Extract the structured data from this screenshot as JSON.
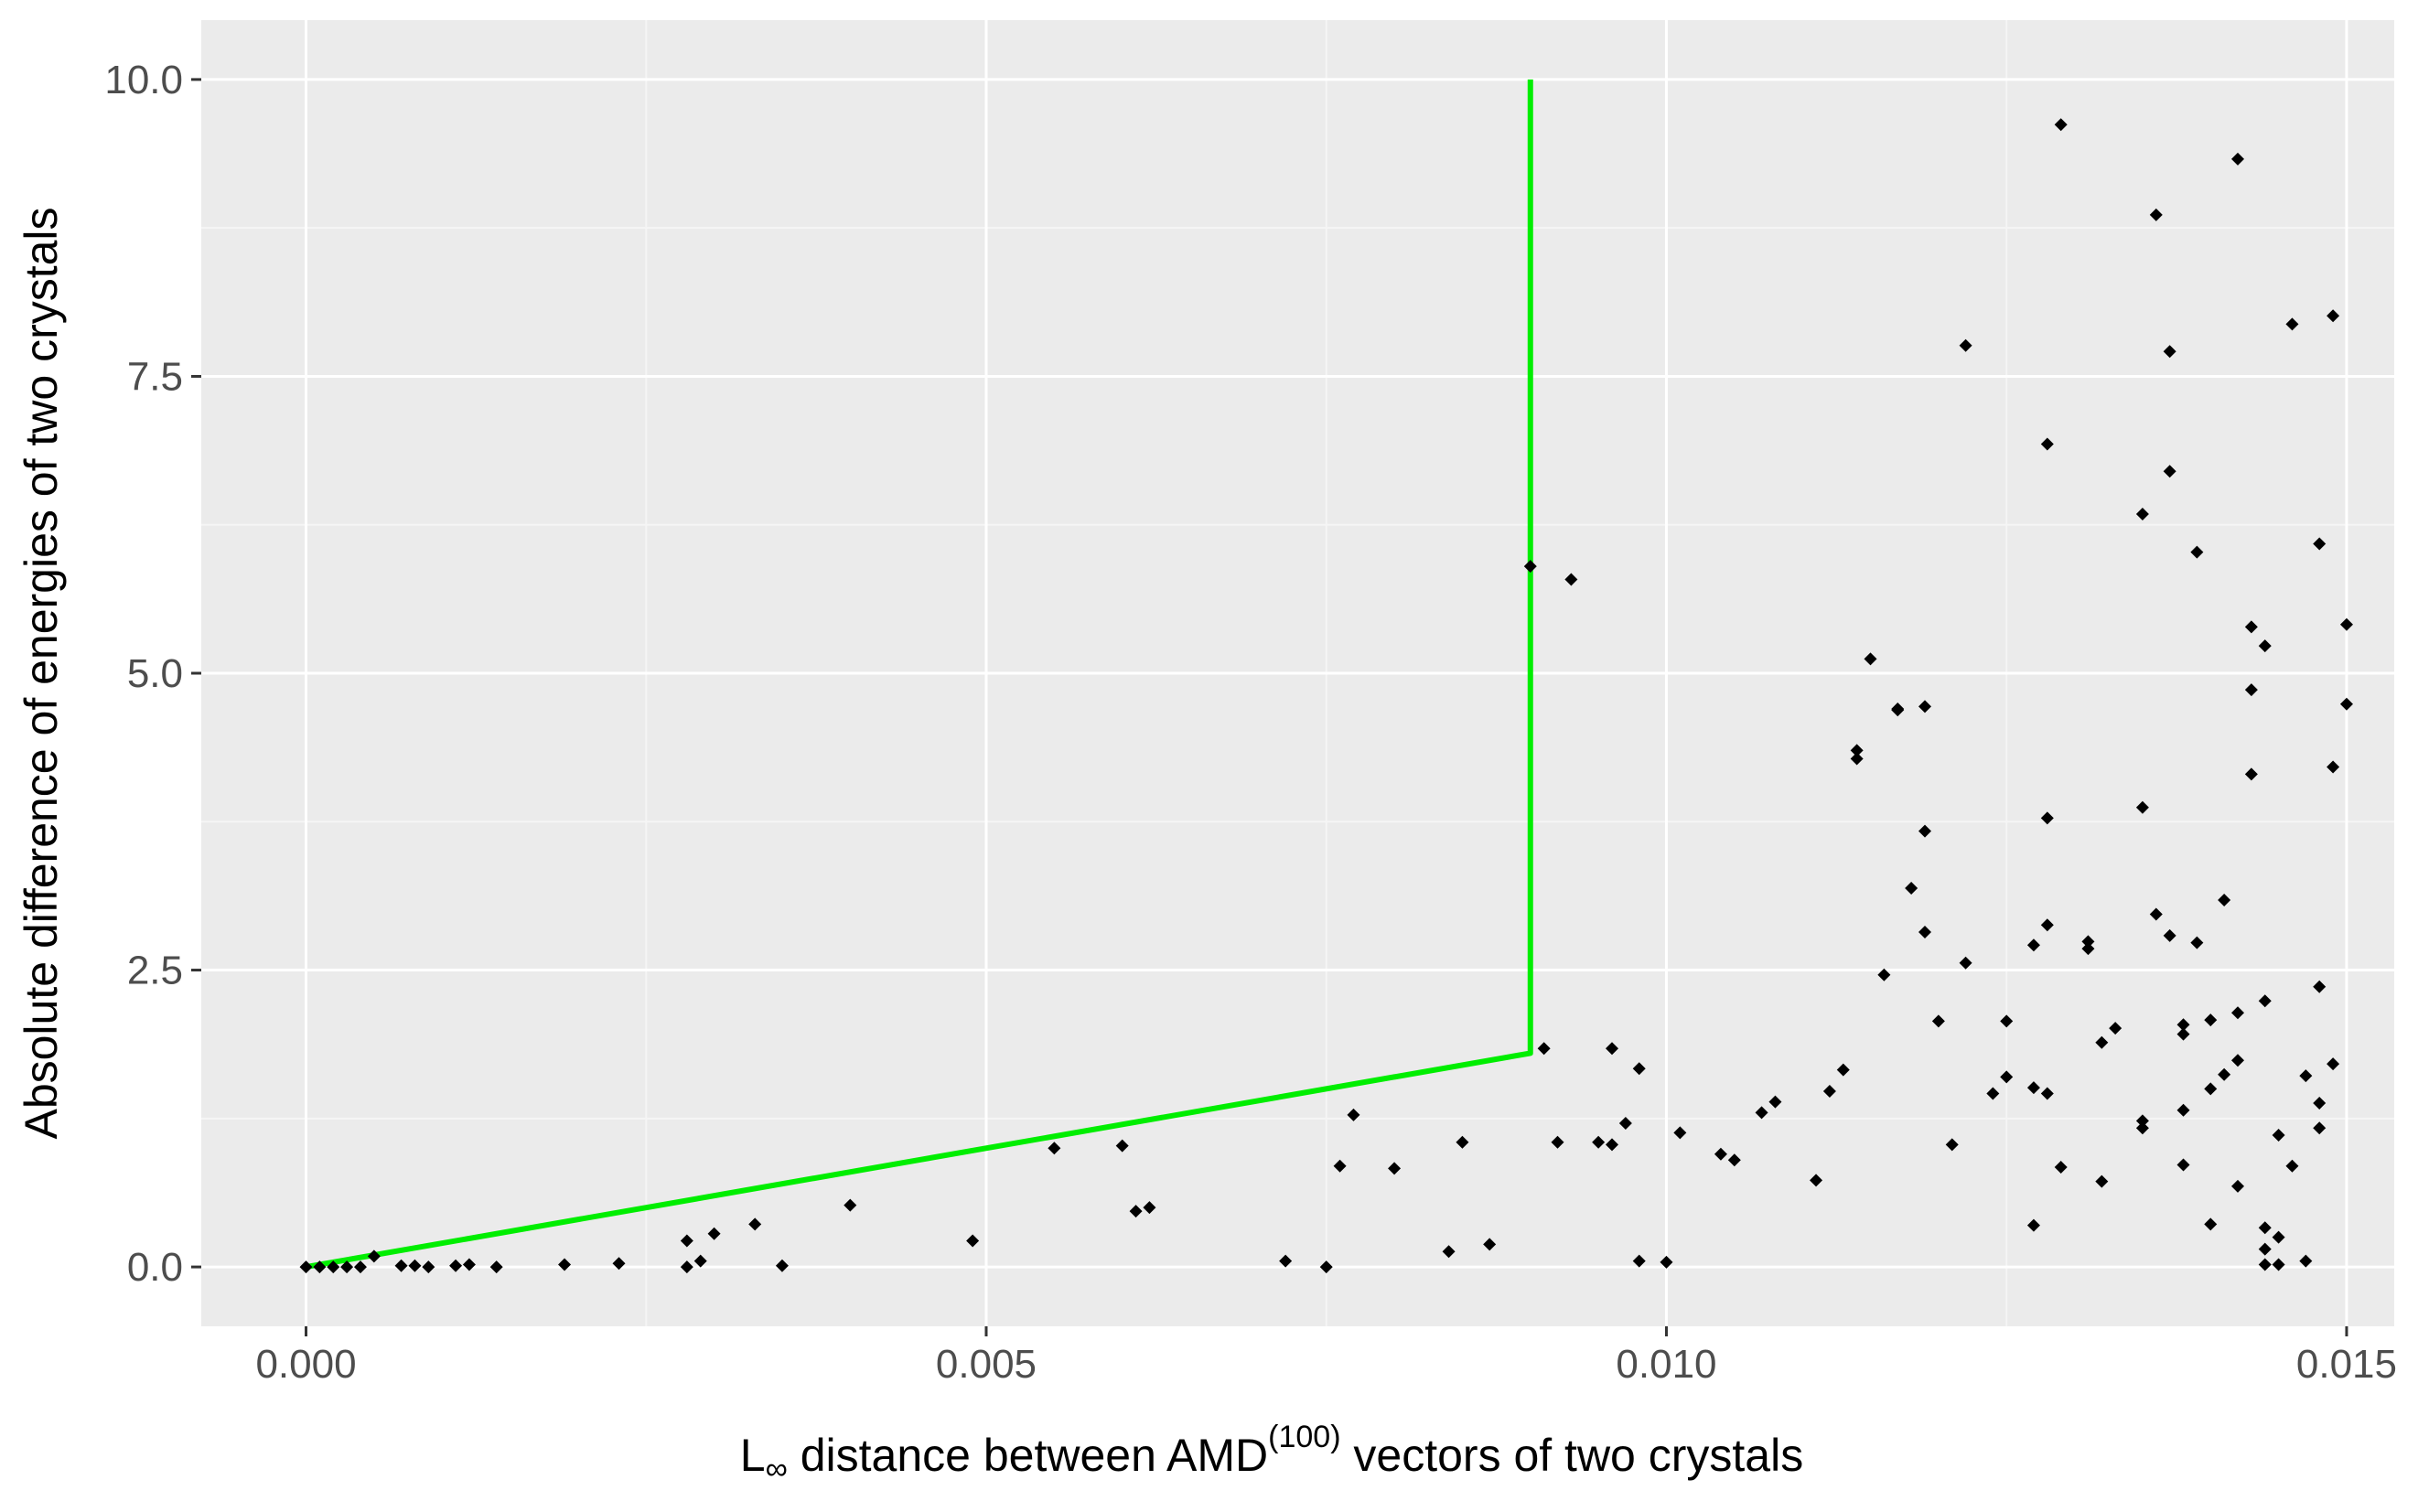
{
  "chart_data": {
    "type": "scatter",
    "title": "",
    "xlabel": {
      "prefix": "L",
      "subscript": "∞",
      "middle": " distance between AMD",
      "superscript": "(100)",
      "suffix": " vectors of two crystals"
    },
    "ylabel": "Absolute difference of energies of two crystals",
    "xlim": [
      -0.00077,
      0.01535
    ],
    "ylim": [
      -0.5,
      10.5
    ],
    "xticks": [
      0.0,
      0.005,
      0.01,
      0.015
    ],
    "xtick_labels": [
      "0.000",
      "0.005",
      "0.010",
      "0.015"
    ],
    "yticks": [
      0.0,
      2.5,
      5.0,
      7.5,
      10.0
    ],
    "ytick_labels": [
      "0.0",
      "2.5",
      "5.0",
      "7.5",
      "10.0"
    ],
    "grid": true,
    "colors": {
      "panel_bg": "#ebebeb",
      "grid_major": "#ffffff",
      "grid_minor": "#f5f5f5",
      "points": "#000000",
      "boundary_line": "#00ee00"
    },
    "boundary_line": {
      "x": [
        0.0,
        0.009,
        0.009
      ],
      "y": [
        0.0,
        1.8,
        10.0
      ]
    },
    "points": [
      [
        0.0,
        0.0
      ],
      [
        0.0001,
        0.0
      ],
      [
        0.0002,
        0.0
      ],
      [
        0.0003,
        0.0
      ],
      [
        0.0004,
        0.0
      ],
      [
        0.0005,
        0.09
      ],
      [
        0.0007,
        0.01
      ],
      [
        0.0008,
        0.01
      ],
      [
        0.0009,
        0.0
      ],
      [
        0.0011,
        0.01
      ],
      [
        0.0012,
        0.02
      ],
      [
        0.0014,
        0.0
      ],
      [
        0.0019,
        0.02
      ],
      [
        0.0023,
        0.03
      ],
      [
        0.0028,
        0.0
      ],
      [
        0.0028,
        0.22
      ],
      [
        0.0029,
        0.05
      ],
      [
        0.003,
        0.28
      ],
      [
        0.0033,
        0.36
      ],
      [
        0.0035,
        0.01
      ],
      [
        0.004,
        0.52
      ],
      [
        0.0049,
        0.22
      ],
      [
        0.0055,
        1.0
      ],
      [
        0.006,
        1.02
      ],
      [
        0.0061,
        0.47
      ],
      [
        0.0062,
        0.5
      ],
      [
        0.0072,
        0.05
      ],
      [
        0.0075,
        0.0
      ],
      [
        0.0076,
        0.85
      ],
      [
        0.0077,
        1.28
      ],
      [
        0.008,
        0.83
      ],
      [
        0.0084,
        0.13
      ],
      [
        0.0085,
        1.05
      ],
      [
        0.0087,
        0.19
      ],
      [
        0.009,
        5.9
      ],
      [
        0.0091,
        1.84
      ],
      [
        0.0092,
        1.05
      ],
      [
        0.0093,
        5.79
      ],
      [
        0.0095,
        1.05
      ],
      [
        0.0096,
        1.03
      ],
      [
        0.0096,
        1.84
      ],
      [
        0.0097,
        1.21
      ],
      [
        0.0098,
        1.67
      ],
      [
        0.0098,
        0.05
      ],
      [
        0.01,
        0.04
      ],
      [
        0.0101,
        1.13
      ],
      [
        0.0104,
        0.95
      ],
      [
        0.0105,
        0.9
      ],
      [
        0.0107,
        1.3
      ],
      [
        0.0108,
        1.39
      ],
      [
        0.0111,
        0.73
      ],
      [
        0.0112,
        1.48
      ],
      [
        0.0113,
        1.66
      ],
      [
        0.0114,
        4.35
      ],
      [
        0.0114,
        4.28
      ],
      [
        0.0115,
        5.12
      ],
      [
        0.0116,
        2.46
      ],
      [
        0.0117,
        4.7
      ],
      [
        0.0117,
        4.69
      ],
      [
        0.0118,
        3.19
      ],
      [
        0.0119,
        4.72
      ],
      [
        0.0119,
        3.67
      ],
      [
        0.0119,
        2.82
      ],
      [
        0.012,
        2.07
      ],
      [
        0.0121,
        1.03
      ],
      [
        0.0122,
        2.56
      ],
      [
        0.0122,
        7.76
      ],
      [
        0.0124,
        1.46
      ],
      [
        0.0125,
        2.07
      ],
      [
        0.0125,
        1.6
      ],
      [
        0.0127,
        2.71
      ],
      [
        0.0127,
        1.51
      ],
      [
        0.0127,
        0.35
      ],
      [
        0.0128,
        1.46
      ],
      [
        0.0128,
        2.88
      ],
      [
        0.0128,
        3.78
      ],
      [
        0.0128,
        6.93
      ],
      [
        0.0129,
        0.84
      ],
      [
        0.0129,
        9.62
      ],
      [
        0.0131,
        2.74
      ],
      [
        0.0131,
        2.68
      ],
      [
        0.0132,
        1.89
      ],
      [
        0.0132,
        0.72
      ],
      [
        0.0133,
        2.01
      ],
      [
        0.0135,
        6.34
      ],
      [
        0.0135,
        3.87
      ],
      [
        0.0135,
        1.23
      ],
      [
        0.0135,
        1.17
      ],
      [
        0.0136,
        2.97
      ],
      [
        0.0136,
        8.86
      ],
      [
        0.0137,
        6.7
      ],
      [
        0.0137,
        2.79
      ],
      [
        0.0137,
        7.71
      ],
      [
        0.0138,
        1.32
      ],
      [
        0.0138,
        1.96
      ],
      [
        0.0138,
        2.04
      ],
      [
        0.0138,
        0.86
      ],
      [
        0.0139,
        6.02
      ],
      [
        0.0139,
        2.73
      ],
      [
        0.014,
        1.5
      ],
      [
        0.014,
        0.36
      ],
      [
        0.014,
        2.08
      ],
      [
        0.0141,
        1.62
      ],
      [
        0.0141,
        3.09
      ],
      [
        0.0142,
        0.68
      ],
      [
        0.0142,
        2.14
      ],
      [
        0.0142,
        1.74
      ],
      [
        0.0142,
        9.33
      ],
      [
        0.0143,
        4.86
      ],
      [
        0.0143,
        4.15
      ],
      [
        0.0143,
        5.39
      ],
      [
        0.0144,
        2.24
      ],
      [
        0.0144,
        5.23
      ],
      [
        0.0144,
        0.15
      ],
      [
        0.0144,
        0.02
      ],
      [
        0.0144,
        0.33
      ],
      [
        0.0145,
        0.25
      ],
      [
        0.0145,
        0.02
      ],
      [
        0.0145,
        1.11
      ],
      [
        0.0146,
        0.85
      ],
      [
        0.0146,
        7.94
      ],
      [
        0.0147,
        1.61
      ],
      [
        0.0147,
        0.05
      ],
      [
        0.0148,
        2.36
      ],
      [
        0.0148,
        1.38
      ],
      [
        0.0148,
        1.17
      ],
      [
        0.0148,
        6.09
      ],
      [
        0.0149,
        8.01
      ],
      [
        0.0149,
        4.21
      ],
      [
        0.0149,
        1.71
      ],
      [
        0.015,
        5.41
      ],
      [
        0.015,
        4.74
      ]
    ]
  }
}
